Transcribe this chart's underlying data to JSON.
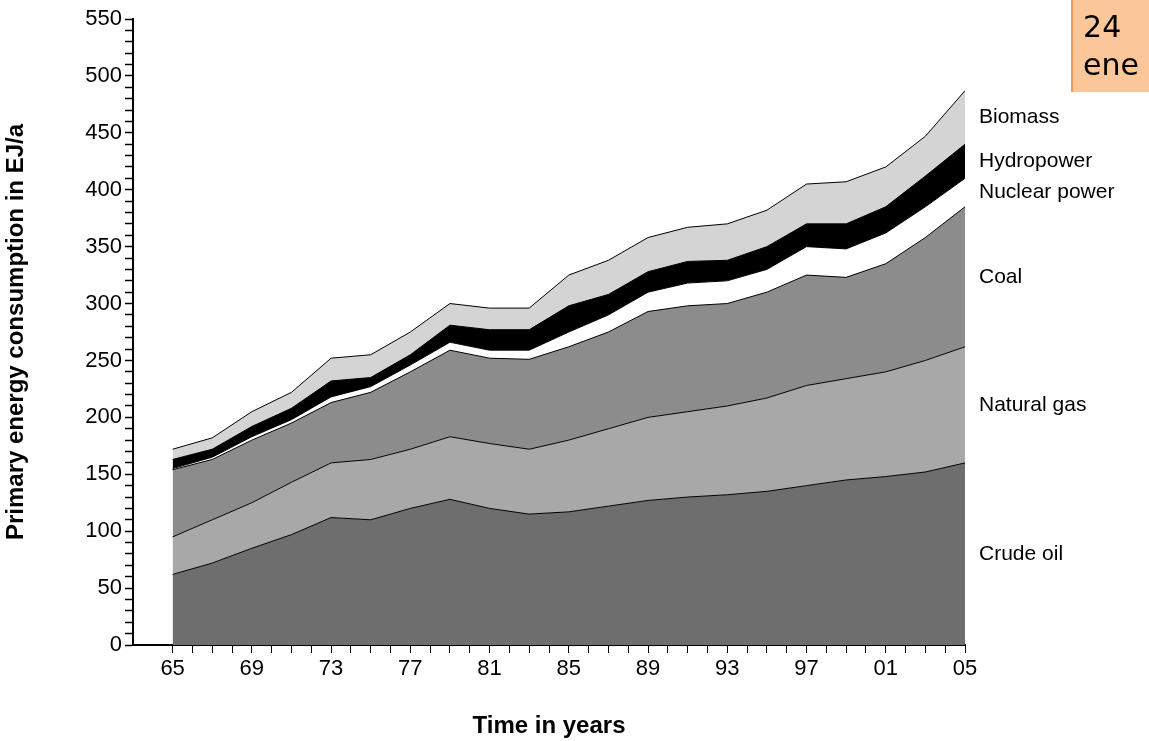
{
  "chart_data": {
    "type": "area",
    "stacked": true,
    "legend": false,
    "grid": false,
    "xlabel": "Time in years",
    "ylabel": "Primary energy consumption in EJ/a",
    "annotations": [
      "24\nene"
    ],
    "x": [
      1965,
      1967,
      1969,
      1971,
      1973,
      1975,
      1977,
      1979,
      1981,
      1983,
      1985,
      1987,
      1989,
      1991,
      1993,
      1995,
      1997,
      1999,
      2001,
      2003,
      2005
    ],
    "series": [
      {
        "name": "Crude oil",
        "color": "#6e6e6e",
        "values": [
          62,
          72,
          85,
          97,
          112,
          110,
          120,
          128,
          120,
          115,
          117,
          122,
          127,
          130,
          132,
          135,
          140,
          145,
          148,
          152,
          160
        ]
      },
      {
        "name": "Natural gas",
        "color": "#a8a8a8",
        "values": [
          33,
          38,
          40,
          46,
          48,
          53,
          52,
          55,
          57,
          57,
          63,
          68,
          73,
          75,
          78,
          82,
          88,
          89,
          92,
          98,
          102
        ]
      },
      {
        "name": "Coal",
        "color": "#8c8c8c",
        "values": [
          59,
          53,
          55,
          52,
          53,
          59,
          68,
          76,
          75,
          79,
          82,
          85,
          93,
          93,
          90,
          93,
          97,
          89,
          95,
          108,
          123
        ]
      },
      {
        "name": "Nuclear power",
        "color": "#ffffff",
        "values": [
          1,
          2,
          3,
          3,
          5,
          5,
          6,
          7,
          7,
          8,
          13,
          15,
          17,
          20,
          20,
          20,
          25,
          25,
          27,
          27,
          25
        ]
      },
      {
        "name": "Hydropower",
        "color": "#000000",
        "values": [
          8,
          7,
          9,
          10,
          14,
          8,
          9,
          15,
          18,
          18,
          23,
          18,
          18,
          19,
          18,
          20,
          20,
          22,
          23,
          27,
          30
        ]
      },
      {
        "name": "Biomass",
        "color": "#d4d4d4",
        "values": [
          9,
          10,
          13,
          14,
          20,
          20,
          20,
          19,
          19,
          19,
          27,
          30,
          30,
          30,
          32,
          32,
          35,
          37,
          35,
          35,
          47
        ]
      }
    ],
    "xlim": [
      1963,
      2005
    ],
    "xticks": [
      {
        "value": 1965,
        "label": "65"
      },
      {
        "value": 1966,
        "label": null
      },
      {
        "value": 1967,
        "label": null
      },
      {
        "value": 1968,
        "label": null
      },
      {
        "value": 1969,
        "label": "69"
      },
      {
        "value": 1970,
        "label": null
      },
      {
        "value": 1971,
        "label": null
      },
      {
        "value": 1972,
        "label": null
      },
      {
        "value": 1973,
        "label": "73"
      },
      {
        "value": 1974,
        "label": null
      },
      {
        "value": 1975,
        "label": null
      },
      {
        "value": 1976,
        "label": null
      },
      {
        "value": 1977,
        "label": "77"
      },
      {
        "value": 1978,
        "label": null
      },
      {
        "value": 1979,
        "label": null
      },
      {
        "value": 1980,
        "label": null
      },
      {
        "value": 1981,
        "label": "81"
      },
      {
        "value": 1982,
        "label": null
      },
      {
        "value": 1983,
        "label": null
      },
      {
        "value": 1984,
        "label": null
      },
      {
        "value": 1985,
        "label": "85"
      },
      {
        "value": 1986,
        "label": null
      },
      {
        "value": 1987,
        "label": null
      },
      {
        "value": 1988,
        "label": null
      },
      {
        "value": 1989,
        "label": "89"
      },
      {
        "value": 1990,
        "label": null
      },
      {
        "value": 1991,
        "label": null
      },
      {
        "value": 1992,
        "label": null
      },
      {
        "value": 1993,
        "label": "93"
      },
      {
        "value": 1994,
        "label": null
      },
      {
        "value": 1995,
        "label": null
      },
      {
        "value": 1996,
        "label": null
      },
      {
        "value": 1997,
        "label": "97"
      },
      {
        "value": 1998,
        "label": null
      },
      {
        "value": 1999,
        "label": null
      },
      {
        "value": 2000,
        "label": null
      },
      {
        "value": 2001,
        "label": "01"
      },
      {
        "value": 2002,
        "label": null
      },
      {
        "value": 2003,
        "label": null
      },
      {
        "value": 2004,
        "label": null
      },
      {
        "value": 2005,
        "label": "05"
      }
    ],
    "ylim": [
      0,
      550
    ],
    "yticks": [
      0,
      {
        "value": 10,
        "label": null
      },
      {
        "value": 20,
        "label": null
      },
      {
        "value": 30,
        "label": null
      },
      {
        "value": 40,
        "label": null
      },
      50,
      {
        "value": 60,
        "label": null
      },
      {
        "value": 70,
        "label": null
      },
      {
        "value": 80,
        "label": null
      },
      {
        "value": 90,
        "label": null
      },
      100,
      {
        "value": 110,
        "label": null
      },
      {
        "value": 120,
        "label": null
      },
      {
        "value": 130,
        "label": null
      },
      {
        "value": 140,
        "label": null
      },
      150,
      {
        "value": 160,
        "label": null
      },
      {
        "value": 170,
        "label": null
      },
      {
        "value": 180,
        "label": null
      },
      {
        "value": 190,
        "label": null
      },
      200,
      {
        "value": 210,
        "label": null
      },
      {
        "value": 220,
        "label": null
      },
      {
        "value": 230,
        "label": null
      },
      {
        "value": 240,
        "label": null
      },
      250,
      {
        "value": 260,
        "label": null
      },
      {
        "value": 270,
        "label": null
      },
      {
        "value": 280,
        "label": null
      },
      {
        "value": 290,
        "label": null
      },
      300,
      {
        "value": 310,
        "label": null
      },
      {
        "value": 320,
        "label": null
      },
      {
        "value": 330,
        "label": null
      },
      {
        "value": 340,
        "label": null
      },
      350,
      {
        "value": 360,
        "label": null
      },
      {
        "value": 370,
        "label": null
      },
      {
        "value": 380,
        "label": null
      },
      {
        "value": 390,
        "label": null
      },
      400,
      {
        "value": 410,
        "label": null
      },
      {
        "value": 420,
        "label": null
      },
      {
        "value": 430,
        "label": null
      },
      {
        "value": 440,
        "label": null
      },
      450,
      {
        "value": 460,
        "label": null
      },
      {
        "value": 470,
        "label": null
      },
      {
        "value": 480,
        "label": null
      },
      {
        "value": 490,
        "label": null
      },
      500,
      {
        "value": 510,
        "label": null
      },
      {
        "value": 520,
        "label": null
      },
      {
        "value": 530,
        "label": null
      },
      {
        "value": 540,
        "label": null
      },
      550
    ]
  }
}
